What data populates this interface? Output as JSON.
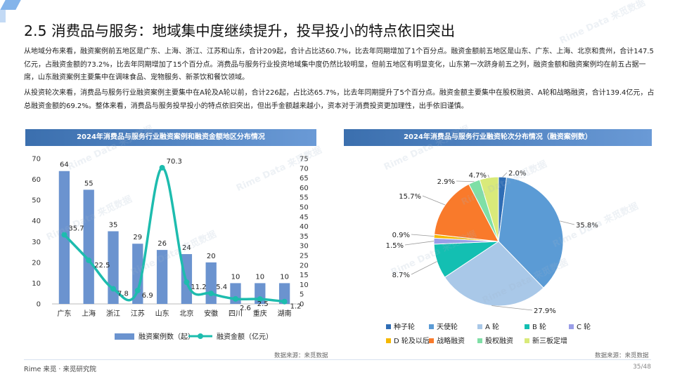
{
  "page": {
    "title": "2.5 消费品与服务：地域集中度继续提升，投早投小的特点依旧突出",
    "paragraph1": "从地域分布来看，融资案例前五地区是广东、上海、浙江、江苏和山东，合计209起，合计占比达60.7%，比去年同期增加了1个百分点。融资金额前五地区是山东、广东、上海、北京和贵州，合计147.5亿元，占融资金额的73.2%，比去年同期增加了15个百分点。消费品与服务行业投资地域集中度仍然比较明显，但前五地区有明显变化，山东第一次跻身前五之列，融资金额和融资案例均在前五占据一席，山东融资案例主要集中在调味食品、宠物服务、新茶饮和餐饮领域。",
    "paragraph2": "从投资轮次来看，消费品与服务行业融资案例主要集中在A轮及A轮以前，合计226起，占比达65.7%，比去年同期提升了5个百分点。融资金额主要集中在股权融资、A轮和战略融资，合计139.4亿元，占总融资金额的69.2%。整体来看，消费品与服务投早投小的特点依旧突出，但出手金额越来越小，资本对于消费投资更加理性，出手依旧谨慎。",
    "footer_brand": "Rime 来觅 · 来觅研究院",
    "page_number": "35/48",
    "watermark": "Rime Data 来觅数据"
  },
  "colors": {
    "bar": "#6b93cf",
    "line": "#1dbcae",
    "header_start": "#3b6fae",
    "header_end": "#6a9ad6",
    "pie": [
      "#2f6db5",
      "#5b9bd5",
      "#a9c8e8",
      "#13bfb2",
      "#9a9ee8",
      "#f5b800",
      "#f97a2b",
      "#7fdfa6",
      "#d9ea7a"
    ]
  },
  "chart_data": [
    {
      "type": "bar",
      "title": "2024年消费品与服务行业融资案例和融资金额地区分布情况",
      "categories": [
        "广东",
        "上海",
        "浙江",
        "江苏",
        "山东",
        "北京",
        "安徽",
        "四川",
        "重庆",
        "湖南"
      ],
      "series": [
        {
          "name": "融资案例数（起）",
          "type": "bar",
          "axis": "left",
          "values": [
            64,
            55,
            35,
            29,
            26,
            24,
            20,
            10,
            10,
            10
          ]
        },
        {
          "name": "融资金额（亿元）",
          "type": "line",
          "axis": "right",
          "values": [
            35.7,
            22.5,
            7.8,
            6.9,
            70.3,
            11.2,
            5.4,
            2.6,
            2.5,
            1.2
          ]
        }
      ],
      "ylim": [
        0,
        70
      ],
      "yticks": [
        0,
        10,
        20,
        30,
        40,
        50,
        60,
        70
      ],
      "y2lim": [
        0,
        75
      ],
      "y2ticks": [
        0,
        5,
        10,
        15,
        20,
        25,
        30,
        35,
        40,
        45,
        50,
        55,
        60,
        65,
        70,
        75
      ],
      "legend_position": "bottom",
      "source": "数据来源：来觅数据"
    },
    {
      "type": "pie",
      "title": "2024年消费品与服务行业融资轮次分布情况（融资案例数）",
      "labels": [
        "种子轮",
        "天使轮",
        "A 轮",
        "B 轮",
        "C 轮",
        "D 轮及以后",
        "战略融资",
        "股权融资",
        "新三板定增"
      ],
      "values": [
        2.0,
        35.8,
        27.9,
        8.7,
        1.5,
        0.9,
        15.7,
        2.9,
        4.7
      ],
      "value_labels": [
        "2.0%",
        "35.8%",
        "27.9%",
        "8.7%",
        "1.5%",
        "0.9%",
        "15.7%",
        "2.9%",
        "4.7%"
      ],
      "legend_position": "bottom",
      "source": "数据来源：来觅数据"
    }
  ]
}
